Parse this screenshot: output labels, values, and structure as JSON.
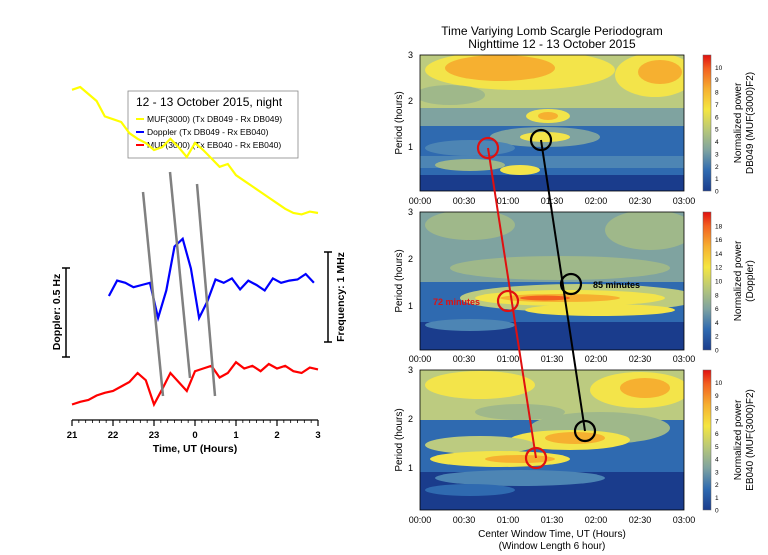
{
  "left_panel": {
    "legend_title": "12 - 13 October 2015, night",
    "legend_entries": [
      {
        "label": "MUF(3000) (Tx DB049 - Rx DB049)",
        "color": "#ffff00"
      },
      {
        "label": "Doppler (Tx DB049 - Rx EB040)",
        "color": "#0000ff"
      },
      {
        "label": "MUF(3000) (Tx EB040 - Rx EB040)",
        "color": "#ff0000"
      }
    ],
    "doppler_scale_label": "Doppler: 0.5 Hz",
    "frequency_scale_label": "Frequency: 1 MHz",
    "xlabel": "Time, UT (Hours)",
    "xticks": [
      "21",
      "22",
      "23",
      "0",
      "1",
      "2",
      "3"
    ]
  },
  "right_panel": {
    "title": "Time Variying Lomb Scargle Periodogram",
    "subtitle": "Nighttime 12 - 13 October 2015",
    "xlabel": "Center Window Time, UT (Hours)",
    "xlabel2": "(Window Length 6 hour)",
    "xticks": [
      "00:00",
      "00:30",
      "01:00",
      "01:30",
      "02:00",
      "02:30",
      "03:00"
    ],
    "ylabel": "Period (hours)",
    "yticks": [
      "1",
      "2",
      "3"
    ],
    "panels": [
      {
        "colorbar_label_1": "Normalized power",
        "colorbar_label_2": "DB049 (MUF(3000)F2)",
        "colorbar_ticks": [
          "0",
          "1",
          "2",
          "3",
          "4",
          "5",
          "6",
          "7",
          "8",
          "9",
          "10"
        ]
      },
      {
        "colorbar_label_1": "Normalized power",
        "colorbar_label_2": "(Doppler)",
        "colorbar_ticks": [
          "0",
          "2",
          "4",
          "6",
          "8",
          "10",
          "12",
          "14",
          "16",
          "18"
        ],
        "annotation_red": "72 minutes",
        "annotation_black": "85 minutes"
      },
      {
        "colorbar_label_1": "Normalized power",
        "colorbar_label_2": "EB040 (MUF(3000)F2)",
        "colorbar_ticks": [
          "0",
          "1",
          "2",
          "3",
          "4",
          "5",
          "6",
          "7",
          "8",
          "9",
          "10"
        ]
      }
    ]
  },
  "chart_data": [
    {
      "type": "line",
      "title": "12 - 13 October 2015, night",
      "xlabel": "Time, UT (Hours)",
      "x_range": [
        21,
        27
      ],
      "series": [
        {
          "name": "MUF(3000) (Tx DB049 - Rx DB049)",
          "color": "#ffff00",
          "x": [
            21.0,
            21.2,
            21.4,
            21.6,
            21.8,
            22.0,
            22.2,
            22.4,
            22.6,
            22.8,
            23.0,
            23.2,
            23.4,
            23.6,
            23.8,
            24.0,
            24.2,
            24.4,
            24.6,
            24.8,
            25.0,
            25.2,
            25.4,
            25.6,
            25.8,
            26.0,
            26.2,
            26.4,
            26.6,
            26.8,
            27.0
          ],
          "y": [
            0.93,
            0.95,
            0.9,
            0.85,
            0.74,
            0.72,
            0.7,
            0.62,
            0.58,
            0.55,
            0.5,
            0.52,
            0.58,
            0.52,
            0.45,
            0.55,
            0.5,
            0.44,
            0.38,
            0.4,
            0.32,
            0.28,
            0.24,
            0.2,
            0.16,
            0.12,
            0.08,
            0.05,
            0.04,
            0.06,
            0.05
          ]
        },
        {
          "name": "Doppler (Tx DB049 - Rx EB040)",
          "color": "#0000ff",
          "x": [
            21.9,
            22.1,
            22.3,
            22.5,
            22.7,
            22.9,
            23.1,
            23.3,
            23.5,
            23.7,
            23.9,
            24.1,
            24.3,
            24.5,
            24.7,
            24.9,
            25.1,
            25.3,
            25.5,
            25.7,
            25.9,
            26.1,
            26.3,
            26.5,
            26.7,
            26.9
          ],
          "y": [
            -0.1,
            0.04,
            0.02,
            -0.02,
            0.0,
            0.02,
            -0.3,
            -0.05,
            0.35,
            0.42,
            0.15,
            -0.3,
            -0.15,
            0.05,
            0.02,
            0.06,
            -0.04,
            0.04,
            0.0,
            -0.05,
            0.06,
            0.02,
            0.04,
            0.05,
            0.1,
            0.02
          ]
        },
        {
          "name": "MUF(3000) (Tx EB040 - Rx EB040)",
          "color": "#ff0000",
          "x": [
            21.0,
            21.2,
            21.4,
            21.6,
            21.8,
            22.0,
            22.2,
            22.4,
            22.6,
            22.8,
            23.0,
            23.2,
            23.4,
            23.6,
            23.8,
            24.0,
            24.2,
            24.4,
            24.6,
            24.8,
            25.0,
            25.2,
            25.4,
            25.6,
            25.8,
            26.0,
            26.2,
            26.4,
            26.6,
            26.8,
            27.0
          ],
          "y": [
            -0.55,
            -0.52,
            -0.5,
            -0.45,
            -0.42,
            -0.4,
            -0.35,
            -0.3,
            -0.2,
            -0.28,
            -0.55,
            -0.38,
            -0.2,
            -0.3,
            -0.4,
            -0.18,
            -0.15,
            -0.12,
            -0.25,
            -0.2,
            -0.08,
            -0.15,
            -0.12,
            -0.18,
            -0.1,
            -0.15,
            -0.12,
            -0.18,
            -0.2,
            -0.14,
            -0.16
          ]
        }
      ]
    },
    {
      "type": "heatmap",
      "title": "Time Variying Lomb Scargle Periodogram",
      "xlabel": "Center Window Time, UT (Hours)",
      "ylabel": "Period (hours)",
      "x_range": [
        "00:00",
        "03:00"
      ],
      "ylim": [
        0,
        3
      ],
      "circles_red": [
        {
          "time_h": 0.75,
          "period_h": 1.1
        },
        {
          "time_h": 0.95,
          "period_h": 1.2
        },
        {
          "time_h": 1.3,
          "period_h": 1.25
        }
      ],
      "circles_black": [
        {
          "time_h": 1.25,
          "period_h": 1.3
        },
        {
          "time_h": 1.55,
          "period_h": 1.6
        },
        {
          "time_h": 1.75,
          "period_h": 1.75
        }
      ]
    }
  ]
}
